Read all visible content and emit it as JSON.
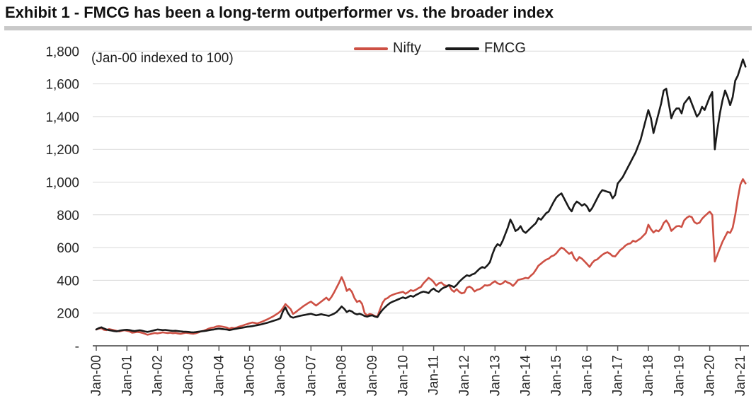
{
  "header": {
    "title": "Exhibit 1 - FMCG has been a long-term outperformer vs. the broader index"
  },
  "annotation": "(Jan-00 indexed to 100)",
  "legend": [
    {
      "label": "Nifty",
      "color": "#cd5044"
    },
    {
      "label": "FMCG",
      "color": "#1a1a1a"
    }
  ],
  "colors": {
    "nifty": "#cd5044",
    "fmcg": "#1a1a1a",
    "gridline": "#d9d9d9",
    "axis": "#595959",
    "text": "#262626",
    "title_rule": "#c9c9c9"
  },
  "chart_data": {
    "type": "line",
    "title": "Exhibit 1 - FMCG has been a long-term outperformer vs. the broader index",
    "subtitle": "(Jan-00 indexed to 100)",
    "xlabel": "",
    "ylabel": "",
    "ylim": [
      0,
      1800
    ],
    "grid": "horizontal",
    "legend_position": "top-center",
    "x_sampling": "monthly, Jan-2000 to Mar-2021",
    "x_tick_labels": [
      "Jan-00",
      "Jan-01",
      "Jan-02",
      "Jan-03",
      "Jan-04",
      "Jan-05",
      "Jan-06",
      "Jan-07",
      "Jan-08",
      "Jan-09",
      "Jan-10",
      "Jan-11",
      "Jan-12",
      "Jan-13",
      "Jan-14",
      "Jan-15",
      "Jan-16",
      "Jan-17",
      "Jan-18",
      "Jan-19",
      "Jan-20",
      "Jan-21"
    ],
    "y_tick_values": [
      0,
      200,
      400,
      600,
      800,
      1000,
      1200,
      1400,
      1600,
      1800
    ],
    "y_tick_labels": [
      "-",
      "200",
      "400",
      "600",
      "800",
      "1,000",
      "1,200",
      "1,400",
      "1,600",
      "1,800"
    ],
    "series": [
      {
        "name": "Nifty",
        "color": "#cd5044",
        "values": [
          100,
          105,
          108,
          98,
          96,
          102,
          99,
          95,
          91,
          88,
          92,
          95,
          92,
          88,
          80,
          82,
          85,
          83,
          79,
          74,
          68,
          71,
          75,
          78,
          76,
          79,
          82,
          80,
          78,
          80,
          77,
          79,
          75,
          73,
          77,
          80,
          78,
          75,
          74,
          77,
          82,
          88,
          92,
          98,
          105,
          110,
          112,
          118,
          120,
          118,
          115,
          112,
          104,
          110,
          108,
          112,
          118,
          122,
          128,
          132,
          138,
          142,
          140,
          136,
          142,
          148,
          155,
          162,
          170,
          178,
          188,
          198,
          210,
          230,
          255,
          240,
          225,
          195,
          205,
          218,
          230,
          242,
          252,
          262,
          270,
          258,
          246,
          258,
          270,
          282,
          294,
          278,
          298,
          325,
          355,
          385,
          420,
          385,
          335,
          348,
          330,
          292,
          268,
          276,
          256,
          200,
          185,
          195,
          190,
          182,
          178,
          222,
          262,
          285,
          292,
          305,
          312,
          318,
          322,
          326,
          330,
          318,
          328,
          340,
          335,
          342,
          352,
          360,
          382,
          398,
          415,
          405,
          390,
          368,
          382,
          386,
          372,
          366,
          370,
          342,
          330,
          346,
          330,
          320,
          325,
          355,
          362,
          352,
          332,
          342,
          346,
          356,
          370,
          368,
          372,
          385,
          395,
          382,
          376,
          382,
          396,
          386,
          380,
          366,
          382,
          402,
          406,
          410,
          415,
          412,
          428,
          442,
          465,
          490,
          502,
          515,
          526,
          532,
          546,
          552,
          565,
          585,
          600,
          592,
          576,
          562,
          572,
          536,
          520,
          542,
          532,
          516,
          500,
          482,
          506,
          522,
          528,
          542,
          556,
          566,
          572,
          562,
          548,
          546,
          565,
          585,
          596,
          612,
          622,
          626,
          642,
          636,
          646,
          656,
          672,
          688,
          740,
          712,
          692,
          706,
          700,
          716,
          750,
          766,
          742,
          702,
          716,
          730,
          732,
          726,
          766,
          782,
          792,
          786,
          756,
          746,
          752,
          776,
          792,
          806,
          820,
          800,
          515,
          556,
          596,
          636,
          666,
          696,
          690,
          722,
          800,
          900,
          985,
          1018,
          992
        ]
      },
      {
        "name": "FMCG",
        "color": "#1a1a1a",
        "values": [
          100,
          108,
          113,
          106,
          100,
          96,
          93,
          90,
          88,
          92,
          95,
          97,
          98,
          96,
          92,
          90,
          93,
          95,
          92,
          88,
          85,
          88,
          92,
          96,
          100,
          98,
          96,
          97,
          95,
          93,
          91,
          92,
          90,
          88,
          87,
          86,
          85,
          83,
          82,
          84,
          86,
          88,
          90,
          92,
          95,
          98,
          100,
          103,
          105,
          103,
          101,
          100,
          96,
          99,
          102,
          105,
          108,
          110,
          113,
          116,
          118,
          120,
          123,
          126,
          129,
          133,
          137,
          141,
          146,
          151,
          156,
          161,
          168,
          210,
          235,
          200,
          178,
          172,
          176,
          180,
          184,
          187,
          190,
          193,
          196,
          191,
          186,
          189,
          193,
          189,
          186,
          183,
          189,
          196,
          206,
          222,
          240,
          226,
          206,
          216,
          210,
          198,
          192,
          196,
          190,
          182,
          178,
          184,
          186,
          179,
          175,
          200,
          220,
          236,
          250,
          262,
          270,
          276,
          283,
          290,
          296,
          290,
          298,
          306,
          300,
          310,
          318,
          326,
          331,
          328,
          322,
          340,
          350,
          336,
          330,
          346,
          356,
          361,
          371,
          366,
          358,
          372,
          391,
          406,
          420,
          431,
          426,
          436,
          441,
          456,
          471,
          481,
          476,
          491,
          511,
          560,
          600,
          621,
          611,
          641,
          681,
          721,
          771,
          741,
          701,
          711,
          731,
          701,
          690,
          705,
          720,
          735,
          750,
          780,
          770,
          790,
          810,
          820,
          850,
          880,
          906,
          921,
          931,
          901,
          871,
          841,
          821,
          861,
          881,
          871,
          856,
          866,
          851,
          821,
          841,
          871,
          901,
          931,
          951,
          946,
          941,
          936,
          901,
          921,
          991,
          1011,
          1031,
          1061,
          1091,
          1121,
          1151,
          1181,
          1221,
          1261,
          1321,
          1381,
          1440,
          1390,
          1300,
          1360,
          1420,
          1480,
          1560,
          1570,
          1480,
          1390,
          1430,
          1450,
          1450,
          1420,
          1480,
          1500,
          1520,
          1480,
          1440,
          1400,
          1420,
          1460,
          1440,
          1480,
          1520,
          1550,
          1200,
          1320,
          1420,
          1500,
          1560,
          1520,
          1470,
          1520,
          1620,
          1650,
          1700,
          1750,
          1705
        ]
      }
    ]
  }
}
